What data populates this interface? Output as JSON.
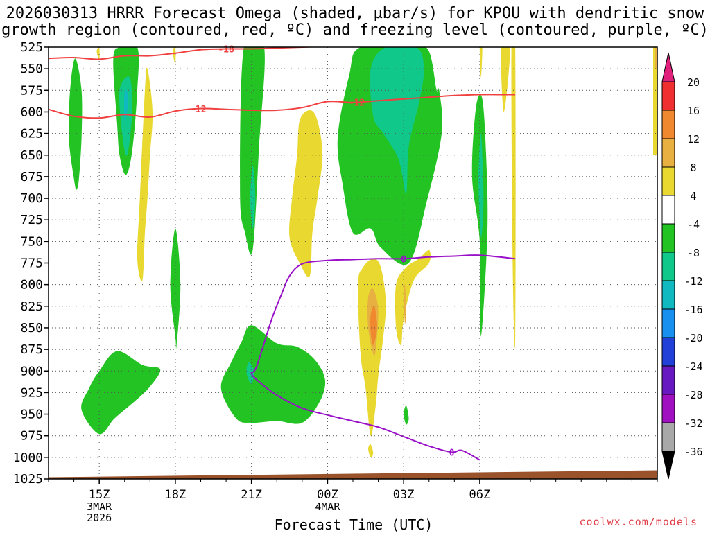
{
  "title": {
    "line1": "2026030313 HRRR Forecast Omega (shaded, µbar/s) for KPOU with dendritic snow",
    "line2": "growth region (contoured, red, ºC) and freezing level (contoured, purple, ºC)"
  },
  "credit": "coolwx.com/models",
  "chart_data": {
    "type": "time-height",
    "title": "2026030313 HRRR Forecast Omega (shaded, µbar/s) for KPOU with dendritic snow growth region (contoured, red, ºC) and freezing level (contoured, purple, ºC)",
    "xlabel": "Forecast Time (UTC)",
    "ylabel": "",
    "x_unit": "hours since 2026-03-03 13Z",
    "x_range": [
      13,
      37
    ],
    "y_unit": "mb",
    "y_range": [
      1025,
      525
    ],
    "y_ticks": [
      "525",
      "550",
      "575",
      "600",
      "625",
      "650",
      "675",
      "700",
      "725",
      "750",
      "775",
      "800",
      "825",
      "850",
      "875",
      "900",
      "925",
      "950",
      "975",
      "1000",
      "1025"
    ],
    "x_ticks": [
      {
        "t": 15,
        "label": "15Z",
        "sub1": "3MAR",
        "sub2": "2026"
      },
      {
        "t": 18,
        "label": "18Z",
        "sub1": "",
        "sub2": ""
      },
      {
        "t": 21,
        "label": "21Z",
        "sub1": "",
        "sub2": ""
      },
      {
        "t": 24,
        "label": "00Z",
        "sub1": "4MAR",
        "sub2": ""
      },
      {
        "t": 27,
        "label": "03Z",
        "sub1": "",
        "sub2": ""
      },
      {
        "t": 30,
        "label": "06Z",
        "sub1": "",
        "sub2": ""
      }
    ],
    "colorbar": {
      "labels": [
        "20",
        "16",
        "12",
        "8",
        "4",
        "-4",
        "-8",
        "-12",
        "-16",
        "-20",
        "-24",
        "-28",
        "-32",
        "-36"
      ],
      "colors": {
        "above_20": "#e0207a",
        "16_20": "#f03030",
        "12_16": "#f08830",
        "8_12": "#e8b040",
        "4_8": "#e8d830",
        "m4_4": "#ffffff",
        "m8_m4": "#22c322",
        "m12_m8": "#10c88a",
        "m16_m12": "#10b8c0",
        "m20_m16": "#1890f0",
        "m24_m20": "#2040d8",
        "m28_m24": "#6818c0",
        "m32_m28": "#a010c0",
        "m36_m32": "#a8a8a8",
        "below_m36": "#000000"
      }
    },
    "omega_regions": [
      {
        "level": "m8_m4",
        "points": [
          [
            14.0,
            677
          ],
          [
            13.8,
            630
          ],
          [
            13.85,
            575
          ],
          [
            14.05,
            538
          ],
          [
            14.3,
            575
          ],
          [
            14.3,
            630
          ],
          [
            14.2,
            677
          ],
          [
            14.1,
            690
          ]
        ]
      },
      {
        "level": "m8_m4",
        "points": [
          [
            15.7,
            612
          ],
          [
            15.55,
            540
          ],
          [
            15.8,
            525
          ],
          [
            16.5,
            525
          ],
          [
            16.5,
            575
          ],
          [
            16.3,
            645
          ],
          [
            16.05,
            673
          ],
          [
            15.8,
            650
          ]
        ]
      },
      {
        "level": "m12_m8",
        "points": [
          [
            15.8,
            575
          ],
          [
            16.2,
            560
          ],
          [
            16.3,
            600
          ],
          [
            16.1,
            650
          ],
          [
            15.9,
            625
          ]
        ]
      },
      {
        "level": "m16_m12",
        "points": [
          [
            16.0,
            575
          ],
          [
            16.15,
            585
          ],
          [
            16.0,
            612
          ]
        ]
      },
      {
        "level": "m8_m4",
        "points": [
          [
            20.55,
            695
          ],
          [
            20.7,
            525
          ],
          [
            21.5,
            525
          ],
          [
            21.3,
            640
          ],
          [
            21.05,
            760
          ],
          [
            20.75,
            740
          ]
        ]
      },
      {
        "level": "m12_m8",
        "points": [
          [
            20.95,
            700
          ],
          [
            21.05,
            662
          ],
          [
            21.15,
            700
          ],
          [
            21.05,
            735
          ]
        ]
      },
      {
        "level": "m8_m4",
        "points": [
          [
            25.0,
            740
          ],
          [
            24.6,
            685
          ],
          [
            24.4,
            630
          ],
          [
            24.85,
            558
          ],
          [
            25.3,
            525
          ],
          [
            27.4,
            525
          ],
          [
            28.0,
            530
          ],
          [
            28.3,
            575
          ],
          [
            28.4,
            575
          ],
          [
            28.5,
            625
          ],
          [
            27.9,
            705
          ],
          [
            27.2,
            775
          ],
          [
            26.1,
            757
          ],
          [
            25.7,
            735
          ]
        ]
      },
      {
        "level": "m12_m8",
        "points": [
          [
            25.7,
            550
          ],
          [
            26.3,
            525
          ],
          [
            27.5,
            525
          ],
          [
            27.8,
            550
          ],
          [
            27.6,
            590
          ],
          [
            27.2,
            640
          ],
          [
            27.1,
            695
          ],
          [
            26.8,
            655
          ],
          [
            26.2,
            625
          ],
          [
            25.8,
            605
          ]
        ]
      },
      {
        "level": "m8_m4",
        "points": [
          [
            18.0,
            860
          ],
          [
            17.8,
            800
          ],
          [
            18.0,
            735
          ],
          [
            18.2,
            800
          ],
          [
            18.05,
            870
          ]
        ]
      },
      {
        "level": "m8_m4",
        "points": [
          [
            14.3,
            945
          ],
          [
            14.6,
            920
          ],
          [
            15.0,
            900
          ],
          [
            15.7,
            877
          ],
          [
            16.7,
            893
          ],
          [
            17.4,
            898
          ],
          [
            17.0,
            918
          ],
          [
            16.4,
            935
          ],
          [
            15.6,
            955
          ],
          [
            15.0,
            973
          ]
        ]
      },
      {
        "level": "m8_m4",
        "points": [
          [
            19.8,
            920
          ],
          [
            20.2,
            890
          ],
          [
            20.6,
            867
          ],
          [
            21.0,
            847
          ],
          [
            22.0,
            868
          ],
          [
            22.8,
            872
          ],
          [
            23.5,
            887
          ],
          [
            23.9,
            910
          ],
          [
            23.7,
            935
          ],
          [
            23.0,
            960
          ],
          [
            22.0,
            958
          ],
          [
            21.0,
            960
          ],
          [
            20.4,
            955
          ]
        ]
      },
      {
        "level": "m12_m8",
        "points": [
          [
            20.9,
            890
          ],
          [
            21.1,
            900
          ],
          [
            21.0,
            915
          ],
          [
            20.8,
            902
          ]
        ]
      },
      {
        "level": "m8_m4",
        "points": [
          [
            30.0,
            750
          ],
          [
            29.7,
            675
          ],
          [
            29.85,
            595
          ],
          [
            30.1,
            585
          ],
          [
            30.25,
            650
          ],
          [
            30.3,
            740
          ],
          [
            30.05,
            860
          ]
        ]
      },
      {
        "level": "m12_m8",
        "points": [
          [
            29.95,
            680
          ],
          [
            30.05,
            625
          ],
          [
            30.15,
            700
          ],
          [
            30.05,
            745
          ]
        ]
      },
      {
        "level": "m8_m4",
        "points": [
          [
            27.0,
            950
          ],
          [
            27.1,
            940
          ],
          [
            27.2,
            955
          ],
          [
            27.1,
            962
          ]
        ]
      }
    ],
    "omega_positive_regions": [
      {
        "level": "4_8",
        "points": [
          [
            15.0,
            525
          ],
          [
            15.0,
            540
          ],
          [
            14.9,
            530
          ]
        ]
      },
      {
        "level": "4_8",
        "points": [
          [
            16.8,
            575
          ],
          [
            16.9,
            550
          ],
          [
            17.1,
            600
          ],
          [
            17.0,
            650
          ],
          [
            16.9,
            700
          ],
          [
            16.8,
            740
          ],
          [
            16.7,
            795
          ],
          [
            16.5,
            770
          ],
          [
            16.6,
            700
          ]
        ]
      },
      {
        "level": "4_8",
        "points": [
          [
            22.8,
            650
          ],
          [
            22.9,
            610
          ],
          [
            23.3,
            598
          ],
          [
            23.6,
            610
          ],
          [
            23.8,
            650
          ],
          [
            23.6,
            700
          ],
          [
            23.4,
            740
          ],
          [
            23.3,
            790
          ],
          [
            22.9,
            775
          ],
          [
            22.5,
            745
          ],
          [
            22.6,
            700
          ]
        ]
      },
      {
        "level": "4_8",
        "points": [
          [
            25.2,
            800
          ],
          [
            25.4,
            780
          ],
          [
            25.8,
            770
          ],
          [
            26.1,
            780
          ],
          [
            26.3,
            820
          ],
          [
            26.2,
            860
          ],
          [
            26.0,
            905
          ],
          [
            25.9,
            940
          ],
          [
            25.7,
            975
          ],
          [
            25.5,
            920
          ],
          [
            25.3,
            880
          ]
        ]
      },
      {
        "level": "4_8",
        "points": [
          [
            25.7,
            985
          ],
          [
            25.8,
            995
          ],
          [
            25.7,
            1000
          ],
          [
            25.6,
            990
          ]
        ]
      },
      {
        "level": "4_8",
        "points": [
          [
            26.7,
            800
          ],
          [
            27.1,
            780
          ],
          [
            27.6,
            770
          ],
          [
            28.0,
            760
          ],
          [
            28.0,
            775
          ],
          [
            27.4,
            795
          ],
          [
            27.0,
            840
          ],
          [
            26.9,
            870
          ],
          [
            26.7,
            850
          ]
        ]
      },
      {
        "level": "4_8",
        "points": [
          [
            30.85,
            525
          ],
          [
            30.95,
            600
          ],
          [
            31.2,
            525
          ]
        ]
      },
      {
        "level": "4_8",
        "points": [
          [
            31.25,
            525
          ],
          [
            31.4,
            525
          ],
          [
            31.4,
            860
          ],
          [
            31.3,
            780
          ]
        ]
      },
      {
        "level": "4_8",
        "points": [
          [
            18.0,
            525
          ],
          [
            18.0,
            545
          ],
          [
            17.9,
            530
          ]
        ]
      },
      {
        "level": "4_8",
        "points": [
          [
            30.0,
            525
          ],
          [
            30.05,
            560
          ],
          [
            30.1,
            525
          ]
        ]
      }
    ],
    "omega_positive_inner": [
      {
        "level": "8_12",
        "points": [
          [
            25.6,
            815
          ],
          [
            25.8,
            805
          ],
          [
            26.0,
            830
          ],
          [
            25.9,
            875
          ],
          [
            25.8,
            880
          ],
          [
            25.6,
            850
          ]
        ]
      },
      {
        "level": "12_16",
        "points": [
          [
            25.7,
            835
          ],
          [
            25.85,
            825
          ],
          [
            25.95,
            850
          ],
          [
            25.8,
            870
          ],
          [
            25.7,
            855
          ]
        ]
      },
      {
        "level": "8_12",
        "points": [
          [
            27.0,
            812
          ],
          [
            27.05,
            800
          ],
          [
            27.1,
            830
          ],
          [
            27.05,
            845
          ]
        ]
      }
    ],
    "dendritic_contours": [
      {
        "label": "-18",
        "label_at": 20.0,
        "points": [
          [
            13,
            538
          ],
          [
            14,
            537
          ],
          [
            15,
            539
          ],
          [
            16,
            535
          ],
          [
            17,
            535
          ],
          [
            18,
            532
          ],
          [
            19,
            528
          ],
          [
            20,
            527
          ],
          [
            21,
            527
          ],
          [
            22,
            526
          ],
          [
            23,
            525
          ],
          [
            24,
            524
          ]
        ]
      },
      {
        "label": "-12",
        "label_at": 18.9,
        "points": [
          [
            13,
            597
          ],
          [
            14,
            605
          ],
          [
            15,
            607
          ],
          [
            16,
            603
          ],
          [
            17,
            606
          ],
          [
            18,
            599
          ],
          [
            19,
            596
          ],
          [
            20,
            597
          ],
          [
            21,
            598
          ],
          [
            22,
            598
          ],
          [
            23,
            595
          ],
          [
            24,
            588
          ],
          [
            25,
            589
          ],
          [
            26,
            587
          ],
          [
            27,
            585
          ],
          [
            28,
            583
          ],
          [
            29,
            581
          ],
          [
            30,
            580
          ],
          [
            31,
            580
          ],
          [
            31.4,
            580
          ]
        ]
      }
    ],
    "dendritic_label_2_at": 25.15,
    "freezing_contour": {
      "label": "0",
      "label_at_top": 27.0,
      "label_at_bottom": 28.9,
      "points": [
        [
          31.4,
          770
        ],
        [
          30,
          766
        ],
        [
          29,
          767
        ],
        [
          28,
          768
        ],
        [
          27,
          770
        ],
        [
          26,
          770
        ],
        [
          25,
          771
        ],
        [
          24,
          772
        ],
        [
          23,
          776
        ],
        [
          22.5,
          790
        ],
        [
          22.2,
          810
        ],
        [
          21.8,
          840
        ],
        [
          21.2,
          895
        ],
        [
          21.0,
          903
        ],
        [
          21.4,
          915
        ],
        [
          22.0,
          928
        ],
        [
          23.0,
          943
        ],
        [
          24.0,
          951
        ],
        [
          25.0,
          958
        ],
        [
          26.0,
          965
        ],
        [
          27.0,
          976
        ],
        [
          28.0,
          987
        ],
        [
          28.9,
          994
        ],
        [
          29.3,
          992
        ],
        [
          30.0,
          1003
        ]
      ]
    },
    "terrain": {
      "color": "#9a522a",
      "left_pressure": 1025,
      "right_pressure": 1015
    }
  }
}
